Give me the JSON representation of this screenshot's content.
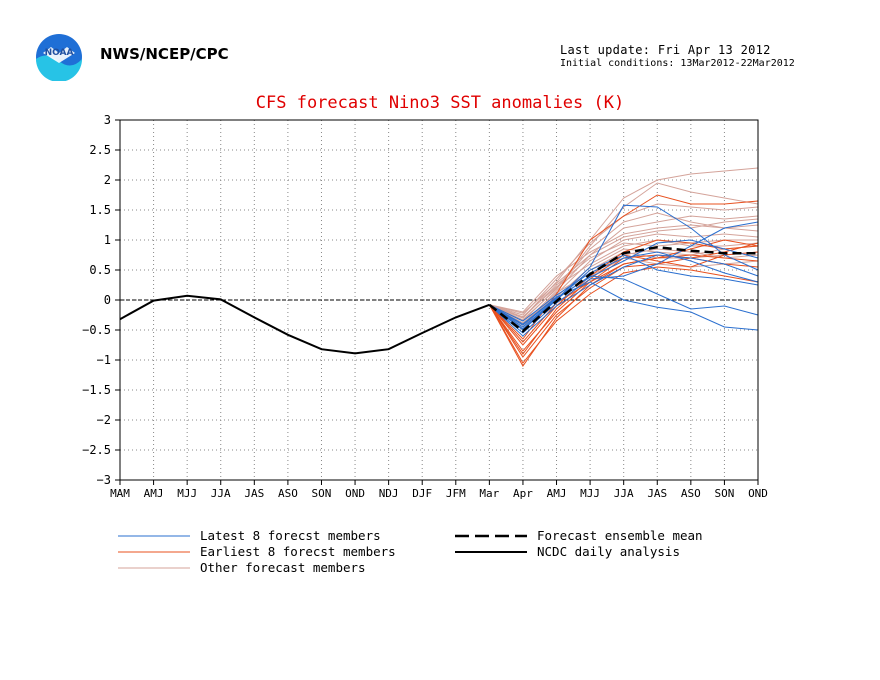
{
  "header": {
    "org": "NWS/NCEP/CPC",
    "last_update": "Last update: Fri Apr 13 2012",
    "initial_conditions": "Initial conditions: 13Mar2012-22Mar2012",
    "logo_text": "NOAA"
  },
  "colors": {
    "latest": "#2a6fcf",
    "earliest": "#e8501e",
    "other": "#d4a39a",
    "mean": "#000000",
    "analysis": "#000000",
    "title": "#e00000"
  },
  "chart_data": {
    "type": "line",
    "title": "CFS forecast Nino3 SST anomalies (K)",
    "categories": [
      "MAM",
      "AMJ",
      "MJJ",
      "JJA",
      "JAS",
      "ASO",
      "SON",
      "OND",
      "NDJ",
      "DJF",
      "JFM",
      "Mar",
      "Apr",
      "AMJ",
      "MJJ",
      "JJA",
      "JAS",
      "ASO",
      "SON",
      "OND"
    ],
    "ylim": [
      -3,
      3
    ],
    "yticks": [
      "3",
      "2.5",
      "2",
      "1.5",
      "1",
      "0.5",
      "0",
      "−0.5",
      "−1",
      "−1.5",
      "−2",
      "−2.5",
      "−3"
    ],
    "grid": true,
    "legend_position": "bottom",
    "legend": {
      "latest": "Latest 8 forecst members",
      "earliest": "Earliest 8 forecst members",
      "other": "Other forecast members",
      "mean": "Forecast ensemble mean",
      "analysis": "NCDC daily analysis"
    },
    "analysis": [
      -0.32,
      -0.01,
      0.07,
      0.01,
      -0.29,
      -0.58,
      -0.82,
      -0.89,
      -0.82,
      -0.55,
      -0.29,
      -0.08
    ],
    "ensemble_mean": [
      -0.08,
      -0.52,
      -0.02,
      0.43,
      0.78,
      0.88,
      0.82,
      0.78,
      0.78
    ],
    "latest_members": [
      [
        -0.08,
        -0.48,
        0.01,
        0.55,
        1.58,
        1.55,
        1.2,
        0.75,
        0.5
      ],
      [
        -0.08,
        -0.4,
        0.05,
        0.3,
        0.0,
        -0.12,
        -0.2,
        -0.45,
        -0.5
      ],
      [
        -0.08,
        -0.55,
        -0.05,
        0.35,
        0.4,
        0.6,
        0.9,
        1.2,
        1.3
      ],
      [
        -0.08,
        -0.45,
        0.02,
        0.4,
        0.35,
        0.1,
        -0.15,
        -0.1,
        -0.25
      ],
      [
        -0.08,
        -0.6,
        -0.1,
        0.25,
        0.55,
        0.75,
        0.7,
        0.6,
        0.4
      ],
      [
        -0.08,
        -0.35,
        0.08,
        0.45,
        0.7,
        0.8,
        0.65,
        0.45,
        0.3
      ],
      [
        -0.08,
        -0.5,
        0.0,
        0.5,
        0.75,
        0.5,
        0.4,
        0.35,
        0.25
      ],
      [
        -0.08,
        -0.42,
        0.04,
        0.38,
        0.65,
        0.95,
        1.0,
        0.85,
        0.7
      ]
    ],
    "earliest_members": [
      [
        -0.08,
        -1.1,
        -0.3,
        0.25,
        0.6,
        0.7,
        0.75,
        0.7,
        0.65
      ],
      [
        -0.08,
        -1.05,
        -0.35,
        0.1,
        0.45,
        0.55,
        0.5,
        0.4,
        0.3
      ],
      [
        -0.08,
        -0.75,
        -0.1,
        0.4,
        0.8,
        1.0,
        0.95,
        0.85,
        0.9
      ],
      [
        -0.08,
        -0.85,
        -0.2,
        0.3,
        0.7,
        0.75,
        0.7,
        0.6,
        0.55
      ],
      [
        -0.08,
        -0.65,
        0.1,
        1.0,
        1.4,
        1.75,
        1.6,
        1.6,
        1.65
      ],
      [
        -0.08,
        -0.9,
        -0.15,
        0.35,
        0.75,
        0.65,
        0.55,
        0.75,
        0.8
      ],
      [
        -0.08,
        -0.7,
        -0.05,
        0.3,
        0.6,
        0.7,
        0.85,
        1.0,
        0.9
      ],
      [
        -0.08,
        -0.95,
        -0.25,
        0.2,
        0.55,
        0.6,
        0.7,
        0.8,
        0.95
      ]
    ],
    "other_members": [
      [
        -0.08,
        -0.3,
        0.3,
        1.0,
        1.7,
        2.0,
        2.1,
        2.15,
        2.2
      ],
      [
        -0.08,
        -0.35,
        0.2,
        0.9,
        1.55,
        1.95,
        1.8,
        1.7,
        1.6
      ],
      [
        -0.08,
        -0.25,
        0.35,
        0.95,
        1.4,
        1.6,
        1.55,
        1.5,
        1.55
      ],
      [
        -0.08,
        -0.4,
        0.15,
        0.75,
        1.2,
        1.3,
        1.4,
        1.35,
        1.4
      ],
      [
        -0.08,
        -0.2,
        0.4,
        0.8,
        1.1,
        1.2,
        1.25,
        1.2,
        1.25
      ],
      [
        -0.08,
        -0.45,
        0.1,
        0.65,
        1.0,
        1.1,
        1.05,
        1.1,
        1.05
      ],
      [
        -0.08,
        -0.3,
        0.25,
        0.7,
        0.95,
        0.9,
        0.95,
        1.0,
        1.0
      ],
      [
        -0.08,
        -0.38,
        0.05,
        0.55,
        0.85,
        0.8,
        0.75,
        0.85,
        0.9
      ],
      [
        -0.08,
        -0.5,
        0.0,
        0.5,
        0.8,
        0.7,
        0.7,
        0.75,
        0.8
      ],
      [
        -0.08,
        -0.28,
        0.22,
        0.6,
        0.9,
        1.0,
        0.9,
        0.9,
        0.95
      ],
      [
        -0.08,
        -0.42,
        0.12,
        0.45,
        0.75,
        0.85,
        0.8,
        0.7,
        0.75
      ],
      [
        -0.08,
        -0.33,
        0.18,
        0.85,
        1.3,
        1.45,
        1.3,
        1.2,
        1.15
      ],
      [
        -0.08,
        -0.48,
        0.02,
        0.4,
        0.7,
        0.6,
        0.55,
        0.6,
        0.65
      ],
      [
        -0.08,
        -0.22,
        0.28,
        0.75,
        1.05,
        1.15,
        1.2,
        1.3,
        1.35
      ]
    ]
  }
}
